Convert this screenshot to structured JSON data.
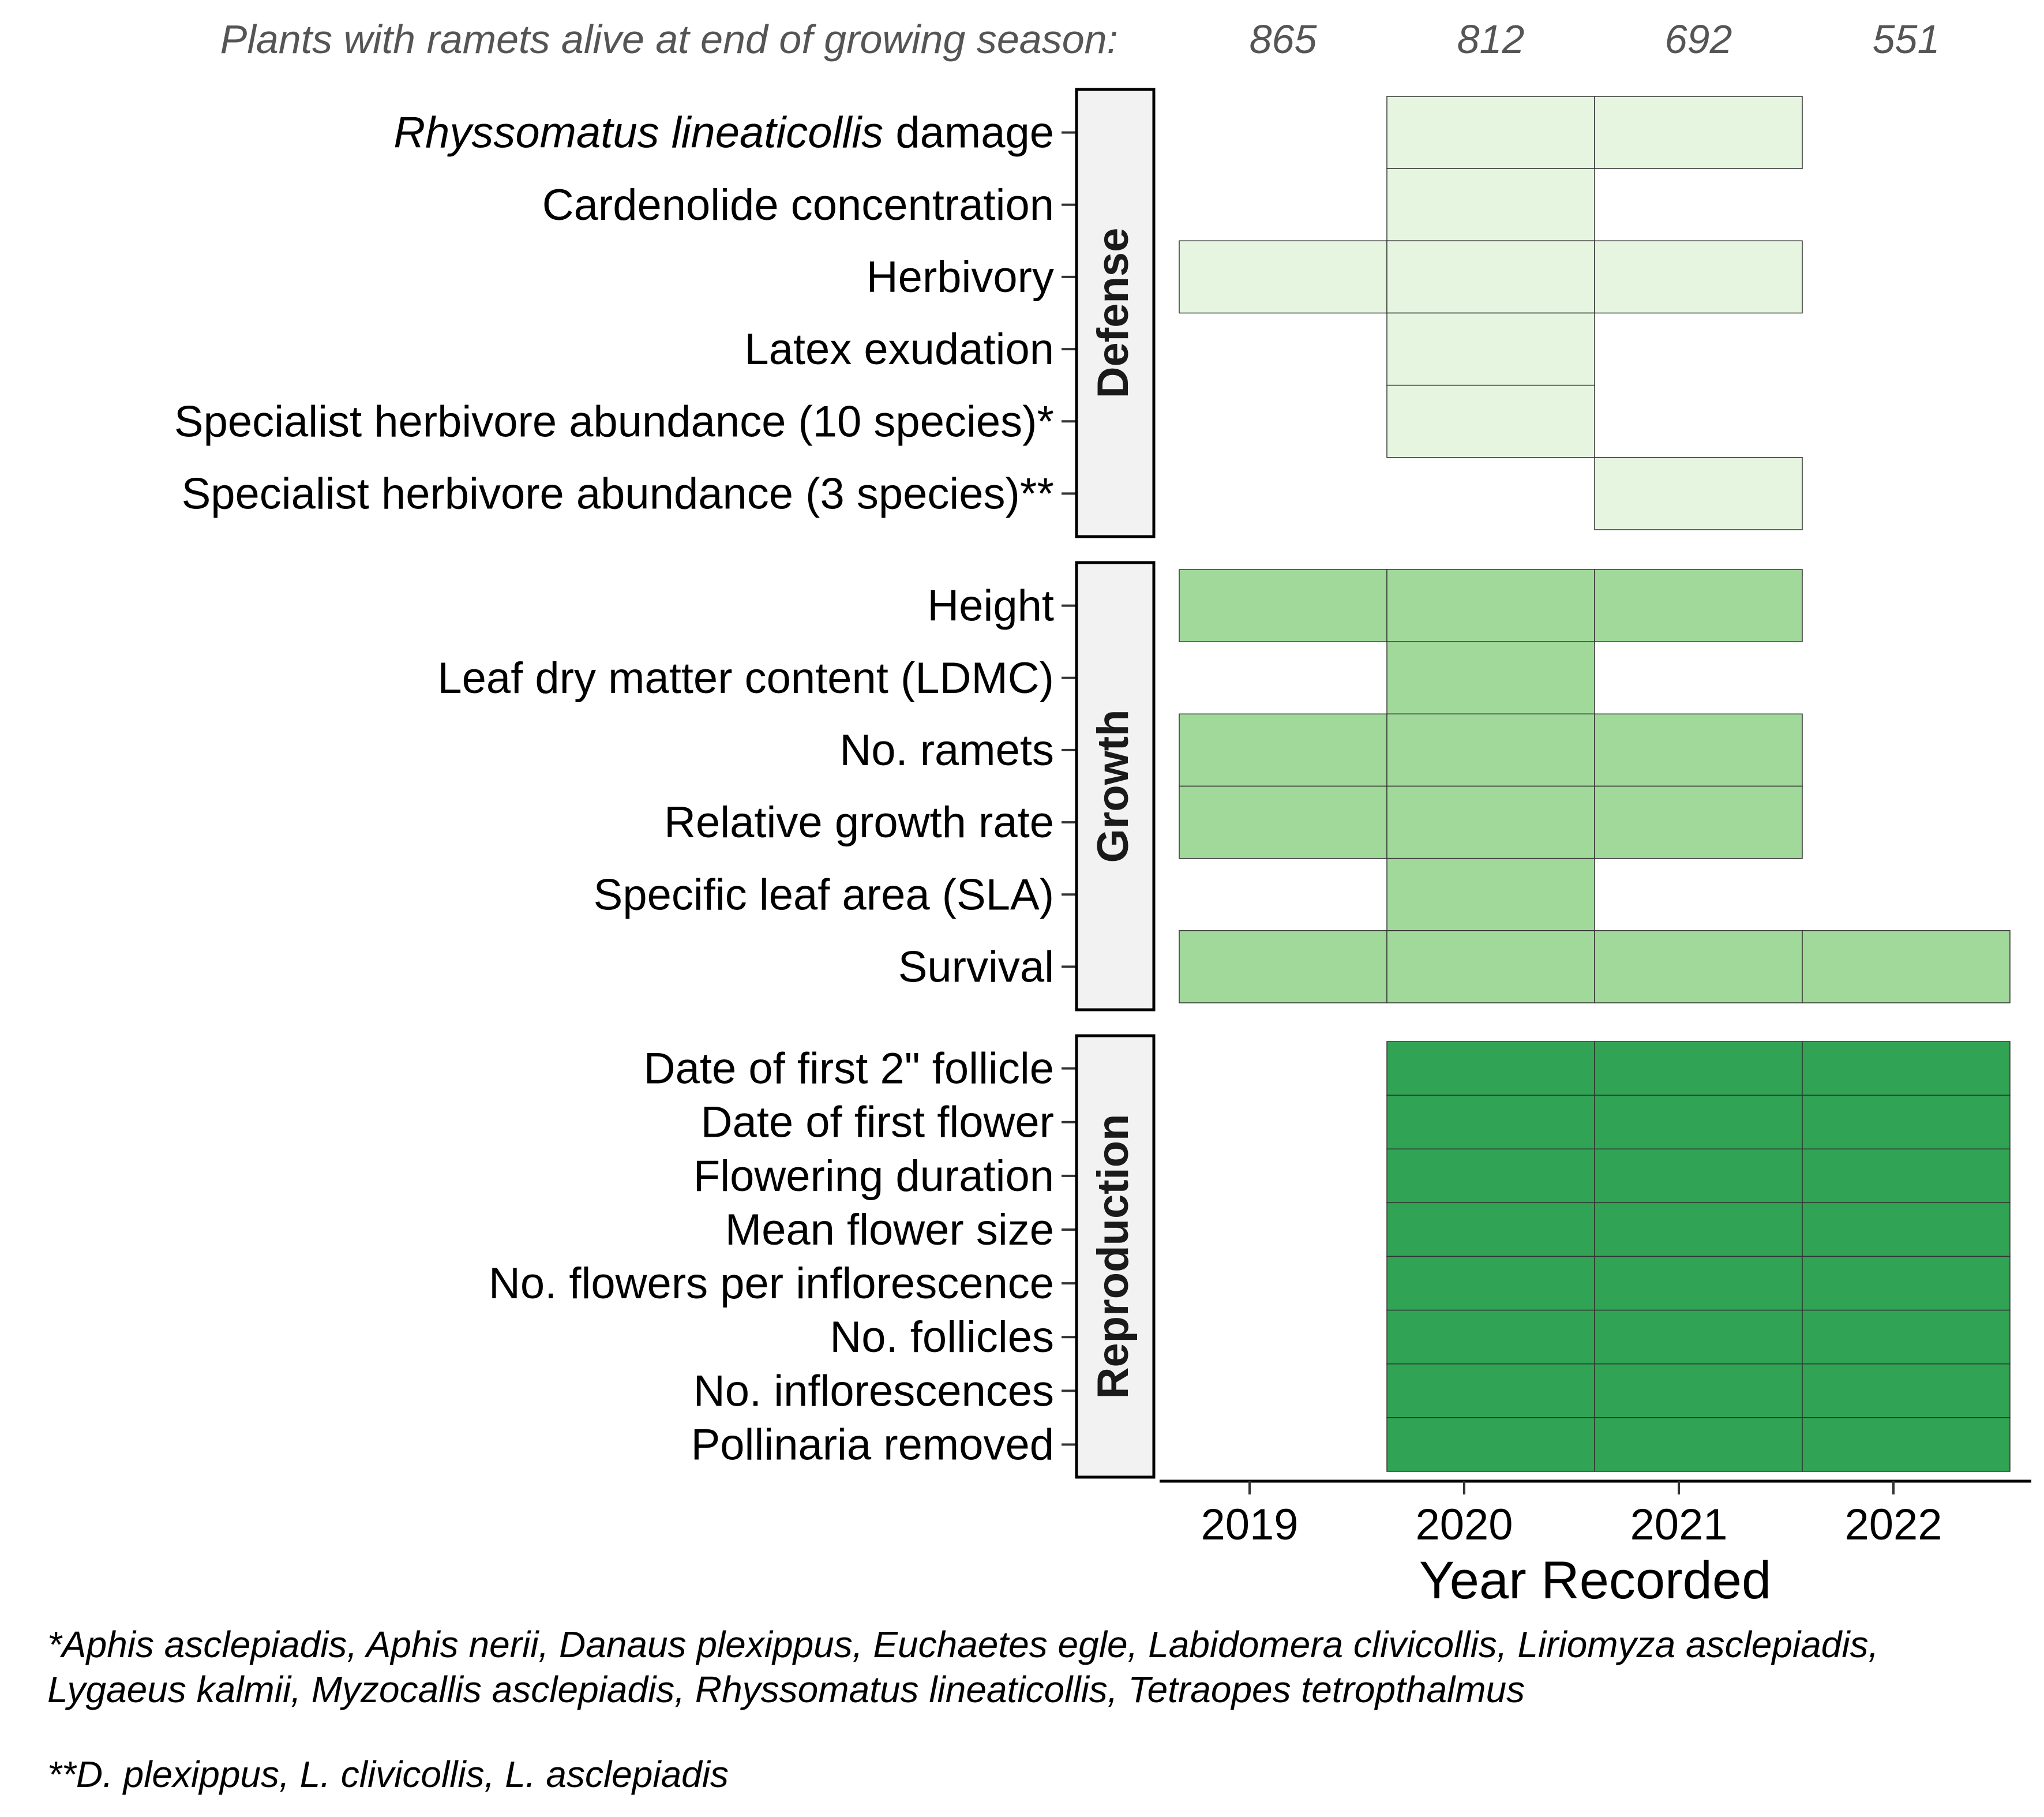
{
  "header": {
    "label": "Plants with ramets alive at end of growing season:",
    "counts": [
      "865",
      "812",
      "692",
      "551"
    ]
  },
  "footnotes": {
    "line1": "*Aphis asclepiadis, Aphis nerii, Danaus plexippus, Euchaetes egle, Labidomera clivicollis, Liriomyza asclepiadis,",
    "line2": "Lygaeus kalmii, Myzocallis asclepiadis, Rhyssomatus lineaticollis, Tetraopes tetropthalmus",
    "line3": "**D. plexippus, L. clivicollis, L. asclepiadis"
  },
  "chart_data": {
    "type": "heatmap",
    "xlabel": "Year Recorded",
    "x": [
      "2019",
      "2020",
      "2021",
      "2022"
    ],
    "panels": [
      {
        "name": "Defense",
        "color": "#e5f5e0",
        "rows": [
          {
            "label_italic": "Rhyssomatus lineaticollis",
            "label": " damage",
            "years": [
              "2020",
              "2021"
            ]
          },
          {
            "label": "Cardenolide concentration",
            "years": [
              "2020"
            ]
          },
          {
            "label": "Herbivory",
            "years": [
              "2019",
              "2020",
              "2021"
            ]
          },
          {
            "label": "Latex exudation",
            "years": [
              "2020"
            ]
          },
          {
            "label": "Specialist herbivore abundance (10 species)*",
            "years": [
              "2020"
            ]
          },
          {
            "label": "Specialist herbivore abundance (3 species)**",
            "years": [
              "2021"
            ]
          }
        ]
      },
      {
        "name": "Growth",
        "color": "#a1d99b",
        "rows": [
          {
            "label": "Height",
            "years": [
              "2019",
              "2020",
              "2021"
            ]
          },
          {
            "label": "Leaf dry matter content (LDMC)",
            "years": [
              "2020"
            ]
          },
          {
            "label": "No. ramets",
            "years": [
              "2019",
              "2020",
              "2021"
            ]
          },
          {
            "label": "Relative growth rate",
            "years": [
              "2019",
              "2020",
              "2021"
            ]
          },
          {
            "label": "Specific leaf area (SLA)",
            "years": [
              "2020"
            ]
          },
          {
            "label": "Survival",
            "years": [
              "2019",
              "2020",
              "2021",
              "2022"
            ]
          }
        ]
      },
      {
        "name": "Reproduction",
        "color": "#31a354",
        "rows": [
          {
            "label": "Date of first 2\" follicle",
            "years": [
              "2020",
              "2021",
              "2022"
            ]
          },
          {
            "label": "Date of first flower",
            "years": [
              "2020",
              "2021",
              "2022"
            ]
          },
          {
            "label": "Flowering duration",
            "years": [
              "2020",
              "2021",
              "2022"
            ]
          },
          {
            "label": "Mean flower size",
            "years": [
              "2020",
              "2021",
              "2022"
            ]
          },
          {
            "label": "No. flowers per inflorescence",
            "years": [
              "2020",
              "2021",
              "2022"
            ]
          },
          {
            "label": "No. follicles",
            "years": [
              "2020",
              "2021",
              "2022"
            ]
          },
          {
            "label": "No. inflorescences",
            "years": [
              "2020",
              "2021",
              "2022"
            ]
          },
          {
            "label": "Pollinaria removed",
            "years": [
              "2020",
              "2021",
              "2022"
            ]
          }
        ]
      }
    ]
  }
}
